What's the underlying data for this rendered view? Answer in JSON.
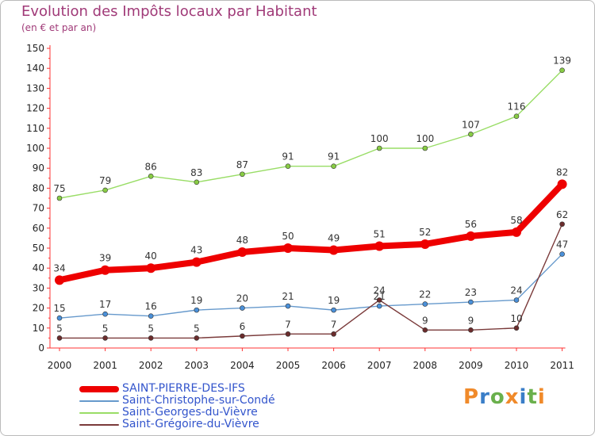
{
  "title": "Evolution des Impôts locaux par Habitant",
  "subtitle": "(en € et par an)",
  "logo": {
    "text": "Proxiti",
    "colors": [
      "#f08a2a",
      "#3a7ec8",
      "#6ab04c",
      "#f08a2a",
      "#3a7ec8",
      "#6ab04c",
      "#f08a2a"
    ]
  },
  "chart_data": {
    "type": "line",
    "title": "Evolution des Impôts locaux par Habitant",
    "subtitle": "(en € et par an)",
    "xlabel": "",
    "ylabel": "",
    "ylim": [
      0,
      150
    ],
    "ytick_step": 10,
    "grid": false,
    "legend_position": "bottom-left",
    "categories": [
      "2000",
      "2001",
      "2002",
      "2003",
      "2004",
      "2005",
      "2006",
      "2007",
      "2008",
      "2009",
      "2010",
      "2011"
    ],
    "series": [
      {
        "name": "Saint-Georges-du-Vièvre",
        "color": "#99dd66",
        "marker": "#88cc44",
        "width": 1.4,
        "marker_radius": 3,
        "values": [
          75,
          79,
          86,
          83,
          87,
          91,
          91,
          100,
          100,
          107,
          116,
          139
        ]
      },
      {
        "name": "Saint-Christophe-sur-Condé",
        "color": "#6699cc",
        "marker": "#4a90d9",
        "width": 1.4,
        "marker_radius": 3,
        "values": [
          15,
          17,
          16,
          19,
          20,
          21,
          19,
          21,
          22,
          23,
          24,
          47
        ]
      },
      {
        "name": "Saint-Grégoire-du-Vièvre",
        "color": "#7a3a3a",
        "marker": "#6b2c2c",
        "width": 1.4,
        "marker_radius": 3,
        "values": [
          5,
          5,
          5,
          5,
          6,
          7,
          7,
          24,
          9,
          9,
          10,
          62
        ]
      },
      {
        "name": "SAINT-PIERRE-DES-IFS",
        "color": "#ee0000",
        "marker": "#ee0000",
        "width": 8,
        "marker_radius": 6,
        "values": [
          34,
          39,
          40,
          43,
          48,
          50,
          49,
          51,
          52,
          56,
          58,
          82
        ]
      }
    ],
    "legend": [
      {
        "name": "SAINT-PIERRE-DES-IFS",
        "color": "#ee0000",
        "width": 8
      },
      {
        "name": "Saint-Christophe-sur-Condé",
        "color": "#6699cc",
        "width": 2
      },
      {
        "name": "Saint-Georges-du-Vièvre",
        "color": "#99dd66",
        "width": 2
      },
      {
        "name": "Saint-Grégoire-du-Vièvre",
        "color": "#7a3a3a",
        "width": 2
      }
    ]
  }
}
